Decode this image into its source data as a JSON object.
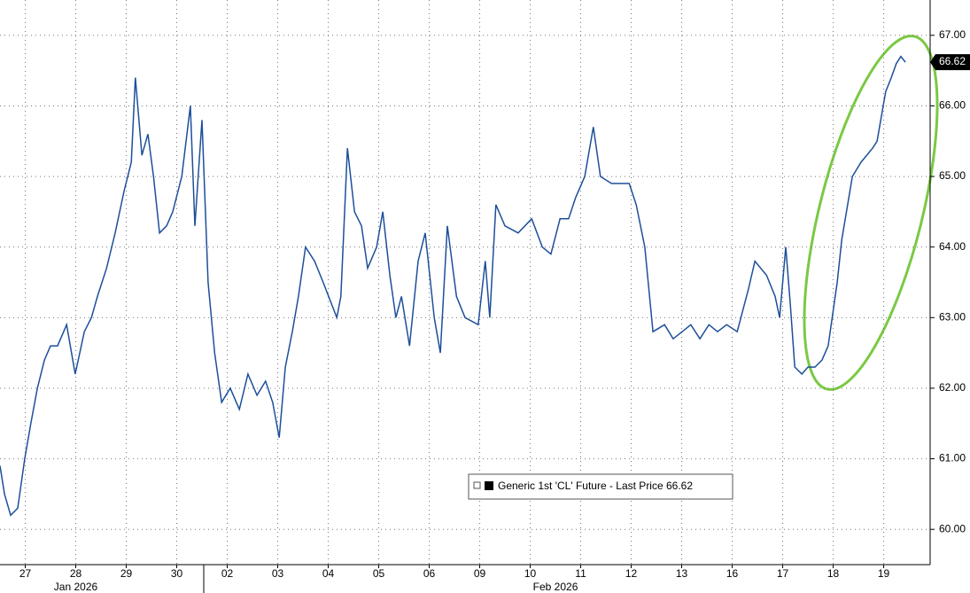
{
  "chart_data": {
    "type": "line",
    "series": [
      {
        "name": "Generic 1st 'CL' Future - Last Price 66.62",
        "color": "#1d4f9a",
        "x": [
          0,
          0.09,
          0.21,
          0.35,
          0.49,
          0.61,
          0.74,
          0.88,
          1.0,
          1.14,
          1.32,
          1.49,
          1.67,
          1.81,
          1.93,
          2.11,
          2.28,
          2.46,
          2.6,
          2.68,
          2.81,
          2.93,
          3.04,
          3.16,
          3.3,
          3.42,
          3.6,
          3.77,
          3.86,
          4.0,
          4.12,
          4.25,
          4.39,
          4.56,
          4.74,
          4.91,
          5.09,
          5.26,
          5.4,
          5.53,
          5.65,
          5.79,
          5.91,
          6.05,
          6.23,
          6.4,
          6.67,
          6.75,
          6.88,
          7.02,
          7.16,
          7.28,
          7.46,
          7.58,
          7.72,
          7.84,
          7.95,
          8.11,
          8.28,
          8.42,
          8.6,
          8.72,
          8.86,
          9.04,
          9.21,
          9.47,
          9.61,
          9.7,
          9.82,
          10.0,
          10.26,
          10.53,
          10.74,
          10.91,
          11.09,
          11.26,
          11.4,
          11.58,
          11.75,
          11.89,
          12.11,
          12.46,
          12.6,
          12.77,
          12.93,
          13.16,
          13.33,
          13.51,
          13.68,
          13.86,
          14.04,
          14.21,
          14.39,
          14.6,
          14.82,
          14.95,
          15.18,
          15.35,
          15.44,
          15.56,
          15.65,
          15.74,
          15.88,
          16.0,
          16.14,
          16.28,
          16.4,
          16.58,
          16.67,
          16.88,
          17.05,
          17.28,
          17.37,
          17.54,
          17.65,
          17.75,
          17.84,
          17.93
        ],
        "values": [
          60.9,
          60.5,
          60.2,
          60.3,
          61.0,
          61.5,
          62.0,
          62.4,
          62.6,
          62.6,
          62.9,
          62.2,
          62.8,
          63.0,
          63.3,
          63.7,
          64.2,
          64.8,
          65.2,
          66.4,
          65.3,
          65.6,
          65.0,
          64.2,
          64.3,
          64.5,
          65.0,
          66.0,
          64.3,
          65.8,
          63.5,
          62.5,
          61.8,
          62.0,
          61.7,
          62.2,
          61.9,
          62.1,
          61.8,
          61.3,
          62.3,
          62.8,
          63.3,
          64.0,
          63.8,
          63.5,
          63.0,
          63.3,
          65.4,
          64.5,
          64.3,
          63.7,
          64.0,
          64.5,
          63.6,
          63.0,
          63.3,
          62.6,
          63.8,
          64.2,
          63.0,
          62.5,
          64.3,
          63.3,
          63.0,
          62.9,
          63.8,
          63.0,
          64.6,
          64.3,
          64.2,
          64.4,
          64.0,
          63.9,
          64.4,
          64.4,
          64.7,
          65.0,
          65.7,
          65.0,
          64.9,
          64.9,
          64.6,
          64.0,
          62.8,
          62.9,
          62.7,
          62.8,
          62.9,
          62.7,
          62.9,
          62.8,
          62.9,
          62.8,
          63.4,
          63.8,
          63.6,
          63.3,
          63.0,
          64.0,
          63.2,
          62.3,
          62.2,
          62.3,
          62.3,
          62.4,
          62.6,
          63.5,
          64.1,
          65.0,
          65.2,
          65.4,
          65.5,
          66.2,
          66.4,
          66.6,
          66.7,
          66.62
        ]
      }
    ],
    "last_price": 66.62,
    "xlim": [
      0,
      18.42
    ],
    "xticks": [
      {
        "value": 0.5,
        "label": "27"
      },
      {
        "value": 1.5,
        "label": "28"
      },
      {
        "value": 2.5,
        "label": "29"
      },
      {
        "value": 3.5,
        "label": "30"
      },
      {
        "value": 4.5,
        "label": "02"
      },
      {
        "value": 5.5,
        "label": "03"
      },
      {
        "value": 6.5,
        "label": "04"
      },
      {
        "value": 7.5,
        "label": "05"
      },
      {
        "value": 8.5,
        "label": "06"
      },
      {
        "value": 9.5,
        "label": "09"
      },
      {
        "value": 10.5,
        "label": "10"
      },
      {
        "value": 11.5,
        "label": "11"
      },
      {
        "value": 12.5,
        "label": "12"
      },
      {
        "value": 13.5,
        "label": "13"
      },
      {
        "value": 14.5,
        "label": "16"
      },
      {
        "value": 15.5,
        "label": "17"
      },
      {
        "value": 16.5,
        "label": "18"
      },
      {
        "value": 17.5,
        "label": "19"
      }
    ],
    "months": [
      {
        "value": 1.5,
        "label": "Jan 2026"
      },
      {
        "value": 11.0,
        "label": "Feb 2026"
      }
    ],
    "ylim": [
      59.5,
      67.5
    ],
    "yticks": [
      {
        "value": 60,
        "label": "60.00"
      },
      {
        "value": 61,
        "label": "61.00"
      },
      {
        "value": 62,
        "label": "62.00"
      },
      {
        "value": 63,
        "label": "63.00"
      },
      {
        "value": 64,
        "label": "64.00"
      },
      {
        "value": 65,
        "label": "65.00"
      },
      {
        "value": 66,
        "label": "66.00"
      },
      {
        "value": 67,
        "label": "67.00"
      }
    ],
    "grid": true
  }
}
